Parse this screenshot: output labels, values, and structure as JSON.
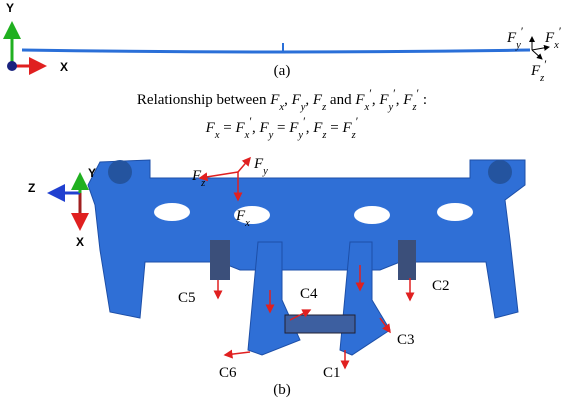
{
  "panel_a": {
    "axis_labels": [
      "Y",
      "X"
    ],
    "caption": "(a)",
    "force_labels": [
      [
        {
          "text": "F",
          "style": "italic"
        },
        {
          "text": "y",
          "style": "sub"
        },
        {
          "text": "′",
          "style": "sup"
        }
      ],
      [
        {
          "text": "F",
          "style": "italic"
        },
        {
          "text": "x",
          "style": "sub"
        },
        {
          "text": "′",
          "style": "sup"
        }
      ],
      [
        {
          "text": "F",
          "style": "italic"
        },
        {
          "text": "z",
          "style": "sub"
        },
        {
          "text": "′",
          "style": "sup"
        }
      ]
    ]
  },
  "relationship": {
    "line1": [
      {
        "text": "Relationship between "
      },
      {
        "text": "F",
        "style": "italic"
      },
      {
        "text": "x",
        "style": "sub"
      },
      {
        "text": ", "
      },
      {
        "text": "F",
        "style": "italic"
      },
      {
        "text": "y",
        "style": "sub"
      },
      {
        "text": ", "
      },
      {
        "text": "F",
        "style": "italic"
      },
      {
        "text": "z",
        "style": "sub"
      },
      {
        "text": " and "
      },
      {
        "text": "F",
        "style": "italic"
      },
      {
        "text": "x",
        "style": "sub"
      },
      {
        "text": "′",
        "style": "sup"
      },
      {
        "text": ", "
      },
      {
        "text": "F",
        "style": "italic"
      },
      {
        "text": "y",
        "style": "sub"
      },
      {
        "text": "′",
        "style": "sup"
      },
      {
        "text": ", "
      },
      {
        "text": "F",
        "style": "italic"
      },
      {
        "text": "z",
        "style": "sub"
      },
      {
        "text": "′",
        "style": "sup"
      },
      {
        "text": " :"
      }
    ],
    "line2": [
      {
        "text": "F",
        "style": "italic"
      },
      {
        "text": "x",
        "style": "sub"
      },
      {
        "text": " = "
      },
      {
        "text": "F",
        "style": "italic"
      },
      {
        "text": "x",
        "style": "sub"
      },
      {
        "text": "′",
        "style": "sup"
      },
      {
        "text": ", "
      },
      {
        "text": "F",
        "style": "italic"
      },
      {
        "text": "y",
        "style": "sub"
      },
      {
        "text": " = "
      },
      {
        "text": "F",
        "style": "italic"
      },
      {
        "text": "y",
        "style": "sub"
      },
      {
        "text": "′",
        "style": "sup"
      },
      {
        "text": ", "
      },
      {
        "text": "F",
        "style": "italic"
      },
      {
        "text": "z",
        "style": "sub"
      },
      {
        "text": " = "
      },
      {
        "text": "F",
        "style": "italic"
      },
      {
        "text": "z",
        "style": "sub"
      },
      {
        "text": "′",
        "style": "sup"
      }
    ]
  },
  "panel_b": {
    "axis_labels": [
      "Z",
      "Y",
      "X"
    ],
    "force_labels": [
      [
        {
          "text": "F",
          "style": "italic"
        },
        {
          "text": "z",
          "style": "sub"
        }
      ],
      [
        {
          "text": "F",
          "style": "italic"
        },
        {
          "text": "y",
          "style": "sub"
        }
      ],
      [
        {
          "text": "F",
          "style": "italic"
        },
        {
          "text": "x",
          "style": "sub"
        }
      ]
    ],
    "constraint_labels": [
      "C5",
      "C2",
      "C4",
      "C3",
      "C6",
      "C1"
    ],
    "caption": "(b)"
  }
}
